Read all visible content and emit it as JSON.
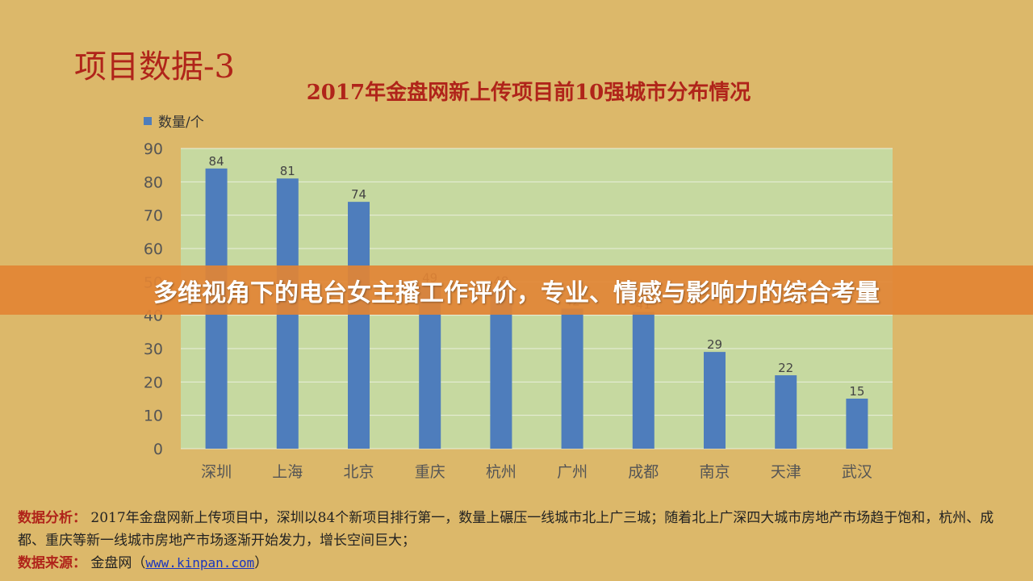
{
  "slide": {
    "title": "项目数据-3",
    "banner": "多维视角下的电台女主播工作评价，专业、情感与影响力的综合考量"
  },
  "chart_data": {
    "type": "bar",
    "title": "2017年金盘网新上传项目前10强城市分布情况",
    "categories": [
      "深圳",
      "上海",
      "北京",
      "重庆",
      "杭州",
      "广州",
      "成都",
      "南京",
      "天津",
      "武汉"
    ],
    "series": [
      {
        "name": "数量/个",
        "values": [
          84,
          81,
          74,
          49,
          48,
          42,
          41,
          29,
          22,
          15
        ],
        "color": "#4e7dbc"
      }
    ],
    "ylim": [
      0,
      90
    ],
    "yticks": [
      0,
      10,
      20,
      30,
      40,
      50,
      60,
      70,
      80,
      90
    ],
    "grid": true,
    "legend_position": "top-left",
    "plot_background": "#c6d9a0"
  },
  "notes": {
    "analysis_label": "数据分析：",
    "analysis_text": "2017年金盘网新上传项目中，深圳以84个新项目排行第一，数量上碾压一线城市北上广三城；随着北上广深四大城市房地产市场趋于饱和，杭州、成都、重庆等新一线城市房地产市场逐渐开始发力，增长空间巨大；",
    "source_label": "数据来源：",
    "source_name": "金盘网（",
    "source_link": "www.kinpan.com",
    "source_close": "）"
  }
}
